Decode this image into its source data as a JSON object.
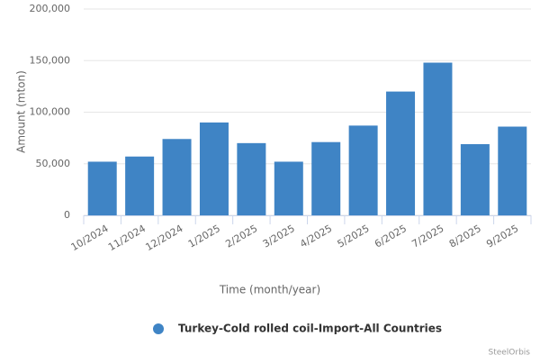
{
  "chart_data": {
    "type": "bar",
    "y_axis_title": "Amount (mton)",
    "x_axis_title": "Time (month/year)",
    "categories": [
      "10/2024",
      "11/2024",
      "12/2024",
      "1/2025",
      "2/2025",
      "3/2025",
      "4/2025",
      "5/2025",
      "6/2025",
      "7/2025",
      "8/2025",
      "9/2025"
    ],
    "series": [
      {
        "name": "Turkey-Cold rolled coil-Import-All Countries",
        "color": "#3f84c5",
        "values": [
          52000,
          57000,
          74000,
          90000,
          70000,
          52000,
          71000,
          87000,
          120000,
          148000,
          69000,
          86000
        ]
      }
    ],
    "ylim": [
      0,
      200000
    ],
    "yticks": [
      0,
      {
        "value": 50000,
        "label": "50,000"
      },
      {
        "value": 100000,
        "label": "100,000"
      },
      {
        "value": 150000,
        "label": "150,000"
      },
      {
        "value": 200000,
        "label": "200,000"
      }
    ],
    "grid": true,
    "credit": "SteelOrbis"
  }
}
